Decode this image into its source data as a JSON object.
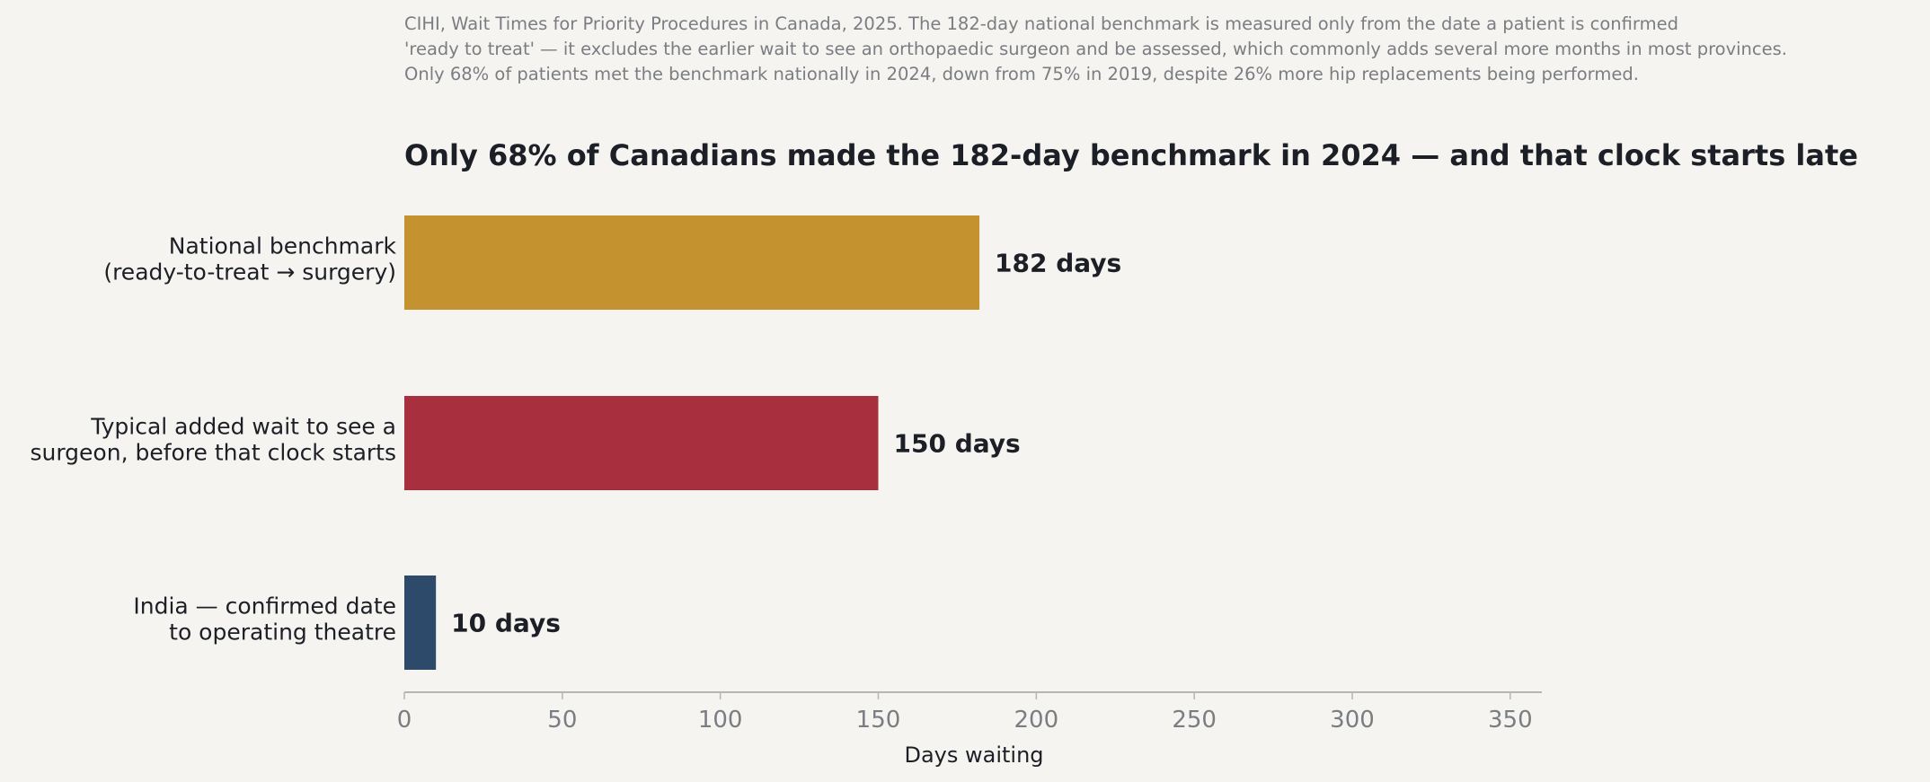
{
  "note_lines": [
    "CIHI, Wait Times for Priority Procedures in Canada, 2025. The 182-day national benchmark is measured only from the date a patient is confirmed",
    "'ready to treat' — it excludes the earlier wait to see an orthopaedic surgeon and be assessed, which commonly adds several more months in most provinces.",
    "Only 68% of patients met the benchmark nationally in 2024, down from 75% in 2019, despite 26% more hip replacements being performed."
  ],
  "chart_data": {
    "type": "bar",
    "orientation": "horizontal",
    "title": "Only 68% of Canadians made the 182-day benchmark in 2024 — and that clock starts late",
    "categories": [
      [
        "National benchmark",
        "(ready-to-treat → surgery)"
      ],
      [
        "Typical added wait to see a",
        "surgeon, before that clock starts"
      ],
      [
        "India — confirmed date",
        "to operating theatre"
      ]
    ],
    "values": [
      182,
      150,
      10
    ],
    "value_labels": [
      "182 days",
      "150 days",
      "10 days"
    ],
    "colors": [
      "#c4922e",
      "#a8303e",
      "#2d4a6b"
    ],
    "xlabel": "Days waiting",
    "ylabel": "",
    "xlim": [
      0,
      360
    ],
    "xticks": [
      0,
      50,
      100,
      150,
      200,
      250,
      300,
      350
    ],
    "grid": false,
    "legend": "none"
  }
}
